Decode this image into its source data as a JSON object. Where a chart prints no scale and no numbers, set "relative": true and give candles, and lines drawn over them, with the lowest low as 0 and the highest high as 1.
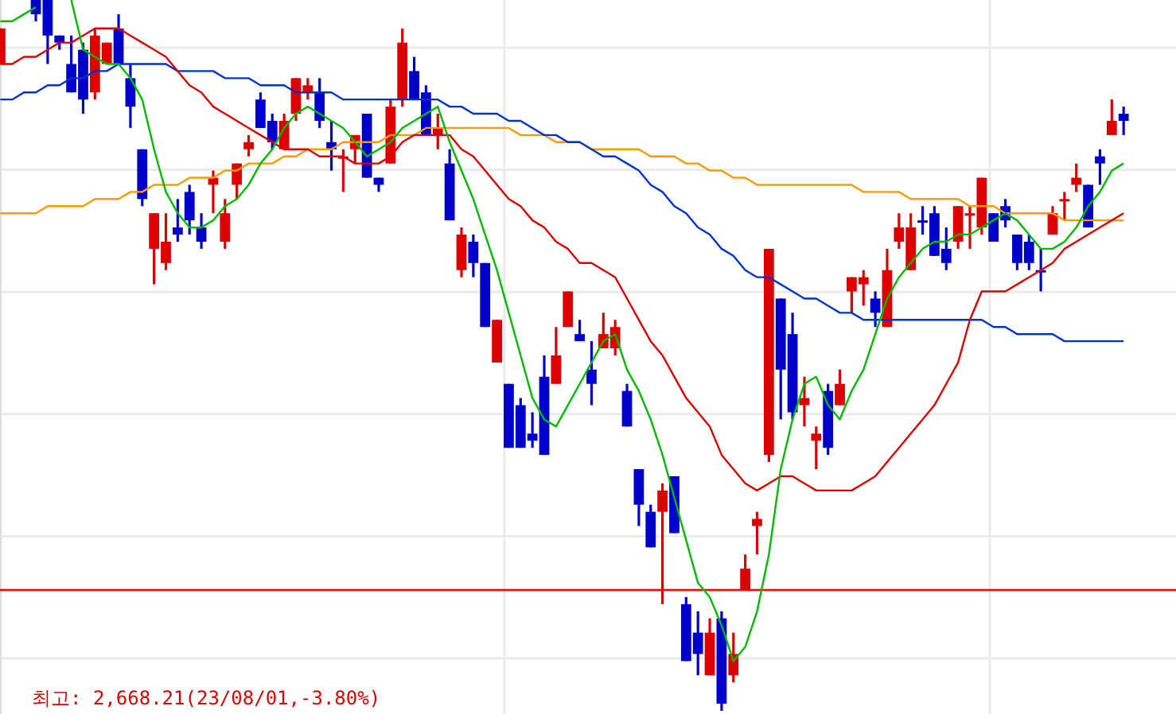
{
  "chart_data": {
    "type": "candlestick",
    "relative": true,
    "grid": true,
    "categories": [
      null,
      null,
      null,
      null,
      null,
      null,
      null,
      null,
      null,
      null,
      null,
      null,
      null,
      null,
      null,
      null,
      null,
      null,
      null,
      null,
      null,
      null,
      null,
      null,
      null,
      null,
      null,
      null,
      null,
      null,
      null,
      null,
      null,
      null,
      null,
      null,
      null,
      null,
      null,
      null,
      null,
      null,
      null,
      null,
      null,
      null,
      null,
      null,
      null,
      null,
      null,
      null,
      null,
      null,
      null,
      null,
      null,
      null,
      null,
      null,
      null,
      null,
      null,
      null,
      null,
      null,
      null,
      null,
      null,
      null,
      null,
      null,
      null,
      null,
      null,
      null,
      null,
      null,
      null,
      null,
      null,
      null,
      null,
      null,
      null,
      null,
      null,
      null,
      null,
      null,
      null,
      null,
      null,
      null,
      null,
      null
    ],
    "ohlc": [
      [
        0.91,
        0.96,
        0.91,
        0.96
      ],
      null,
      null,
      [
        1,
        1,
        0.97,
        0.98
      ],
      [
        1,
        1,
        0.91,
        0.95
      ],
      [
        0.95,
        0.95,
        0.93,
        0.94
      ],
      [
        0.91,
        0.95,
        0.87,
        0.87
      ],
      [
        0.93,
        0.94,
        0.84,
        0.86
      ],
      [
        0.87,
        0.96,
        0.86,
        0.95
      ],
      [
        0.91,
        0.94,
        0.91,
        0.94
      ],
      [
        0.96,
        0.98,
        0.91,
        0.91
      ],
      [
        0.89,
        0.91,
        0.82,
        0.85
      ],
      [
        0.79,
        0.79,
        0.71,
        0.72
      ],
      [
        0.65,
        0.7,
        0.6,
        0.7
      ],
      [
        0.63,
        0.7,
        0.62,
        0.66
      ],
      [
        0.68,
        0.72,
        0.66,
        0.67
      ],
      [
        0.73,
        0.74,
        0.67,
        0.69
      ],
      [
        0.68,
        0.7,
        0.65,
        0.66
      ],
      [
        0.74,
        0.76,
        0.7,
        0.75
      ],
      [
        0.66,
        0.72,
        0.65,
        0.7
      ],
      [
        0.74,
        0.77,
        0.72,
        0.77
      ],
      [
        0.79,
        0.81,
        0.78,
        0.8
      ],
      [
        0.86,
        0.87,
        0.82,
        0.82
      ],
      [
        0.83,
        0.84,
        0.79,
        0.8
      ],
      [
        0.79,
        0.84,
        0.79,
        0.83
      ],
      [
        0.84,
        0.89,
        0.83,
        0.89
      ],
      [
        0.87,
        0.89,
        0.86,
        0.88
      ],
      [
        0.87,
        0.89,
        0.82,
        0.83
      ],
      [
        0.8,
        0.83,
        0.76,
        0.79
      ],
      [
        0.78,
        0.79,
        0.73,
        0.78
      ],
      [
        0.79,
        0.81,
        0.77,
        0.81
      ],
      [
        0.84,
        0.84,
        0.75,
        0.75
      ],
      [
        0.75,
        0.75,
        0.73,
        0.74
      ],
      [
        0.77,
        0.86,
        0.77,
        0.85
      ],
      [
        0.86,
        0.96,
        0.85,
        0.94
      ],
      [
        0.9,
        0.92,
        0.86,
        0.86
      ],
      [
        0.87,
        0.88,
        0.81,
        0.81
      ],
      [
        0.81,
        0.84,
        0.79,
        0.82
      ],
      [
        0.77,
        0.79,
        0.69,
        0.69
      ],
      [
        0.62,
        0.68,
        0.61,
        0.67
      ],
      [
        0.66,
        0.67,
        0.61,
        0.63
      ],
      [
        0.63,
        0.63,
        0.54,
        0.54
      ],
      [
        0.49,
        0.55,
        0.49,
        0.55
      ],
      [
        0.46,
        0.46,
        0.37,
        0.37
      ],
      [
        0.43,
        0.44,
        0.37,
        0.37
      ],
      [
        0.39,
        0.42,
        0.37,
        0.38
      ],
      [
        0.47,
        0.5,
        0.36,
        0.36
      ],
      [
        0.46,
        0.54,
        0.46,
        0.5
      ],
      [
        0.54,
        0.59,
        0.54,
        0.59
      ],
      [
        0.53,
        0.55,
        0.52,
        0.52
      ],
      [
        0.48,
        0.52,
        0.43,
        0.46
      ],
      [
        0.51,
        0.56,
        0.51,
        0.53
      ],
      [
        0.51,
        0.55,
        0.5,
        0.54
      ],
      [
        0.45,
        0.46,
        0.4,
        0.4
      ],
      [
        0.34,
        0.34,
        0.26,
        0.29
      ],
      [
        0.28,
        0.29,
        0.23,
        0.23
      ],
      [
        0.28,
        0.32,
        0.15,
        0.31
      ],
      [
        0.33,
        0.33,
        0.25,
        0.25
      ],
      [
        0.15,
        0.16,
        0.07,
        0.07
      ],
      [
        0.11,
        0.14,
        0.05,
        0.08
      ],
      [
        0.05,
        0.13,
        0.05,
        0.11
      ],
      [
        0.13,
        0.14,
        0,
        0.01
      ],
      [
        0.05,
        0.11,
        0.04,
        0.08
      ],
      [
        0.17,
        0.22,
        0.17,
        0.2
      ],
      [
        0.26,
        0.28,
        0.22,
        0.27
      ],
      [
        0.36,
        0.65,
        0.35,
        0.65
      ],
      [
        0.58,
        0.58,
        0.41,
        0.48
      ],
      [
        0.53,
        0.56,
        0.41,
        0.42
      ],
      [
        0.43,
        0.47,
        0.4,
        0.44
      ],
      [
        0.38,
        0.4,
        0.34,
        0.39
      ],
      [
        0.45,
        0.46,
        0.36,
        0.37
      ],
      [
        0.43,
        0.48,
        0.43,
        0.46
      ],
      [
        0.59,
        0.61,
        0.56,
        0.61
      ],
      [
        0.6,
        0.62,
        0.57,
        0.61
      ],
      [
        0.58,
        0.59,
        0.54,
        0.56
      ],
      [
        0.54,
        0.65,
        0.54,
        0.62
      ],
      [
        0.66,
        0.7,
        0.65,
        0.68
      ],
      [
        0.62,
        0.7,
        0.62,
        0.68
      ],
      [
        0.69,
        0.71,
        0.67,
        0.69
      ],
      [
        0.7,
        0.71,
        0.64,
        0.64
      ],
      [
        0.65,
        0.68,
        0.62,
        0.63
      ],
      [
        0.66,
        0.71,
        0.65,
        0.71
      ],
      [
        0.7,
        0.71,
        0.65,
        0.7
      ],
      [
        0.68,
        0.75,
        0.67,
        0.75
      ],
      [
        0.7,
        0.7,
        0.66,
        0.66
      ],
      [
        0.71,
        0.72,
        0.68,
        0.69
      ],
      [
        0.67,
        0.67,
        0.62,
        0.63
      ],
      [
        0.66,
        0.67,
        0.62,
        0.63
      ],
      [
        0.62,
        0.65,
        0.59,
        0.62
      ],
      [
        0.67,
        0.71,
        0.67,
        0.7
      ],
      [
        0.72,
        0.73,
        0.69,
        0.72
      ],
      [
        0.74,
        0.77,
        0.73,
        0.75
      ],
      [
        0.74,
        0.74,
        0.68,
        0.68
      ],
      [
        0.78,
        0.79,
        0.74,
        0.77
      ],
      [
        0.81,
        0.86,
        0.81,
        0.83
      ],
      [
        0.84,
        0.85,
        0.81,
        0.83
      ]
    ],
    "colors": [
      "#dd0000",
      null,
      null,
      "#0000cc",
      "#0000cc",
      "#0000cc",
      "#0000cc",
      "#0000cc",
      "#dd0000",
      "#dd0000",
      "#0000cc",
      "#0000cc",
      "#0000cc",
      "#dd0000",
      "#dd0000",
      "#0000cc",
      "#0000cc",
      "#0000cc",
      "#dd0000",
      "#dd0000",
      "#dd0000",
      "#dd0000",
      "#0000cc",
      "#0000cc",
      "#dd0000",
      "#dd0000",
      "#dd0000",
      "#0000cc",
      "#0000cc",
      "#dd0000",
      "#dd0000",
      "#0000cc",
      "#0000cc",
      "#dd0000",
      "#dd0000",
      "#0000cc",
      "#0000cc",
      "#dd0000",
      "#0000cc",
      "#dd0000",
      "#0000cc",
      "#0000cc",
      "#dd0000",
      "#0000cc",
      "#0000cc",
      "#0000cc",
      "#0000cc",
      "#dd0000",
      "#dd0000",
      "#0000cc",
      "#0000cc",
      "#dd0000",
      "#dd0000",
      "#0000cc",
      "#0000cc",
      "#0000cc",
      "#dd0000",
      "#0000cc",
      "#0000cc",
      "#0000cc",
      "#dd0000",
      "#0000cc",
      "#dd0000",
      "#dd0000",
      "#dd0000",
      "#dd0000",
      "#0000cc",
      "#0000cc",
      "#dd0000",
      "#dd0000",
      "#0000cc",
      "#dd0000",
      "#dd0000",
      "#dd0000",
      "#0000cc",
      "#dd0000",
      "#dd0000",
      "#dd0000",
      "#0000cc",
      "#0000cc",
      "#0000cc",
      "#dd0000",
      "#dd0000",
      "#dd0000",
      "#0000cc",
      "#0000cc",
      "#0000cc",
      "#0000cc",
      "#0000cc",
      "#dd0000",
      "#dd0000",
      "#dd0000",
      "#0000cc",
      "#0000cc",
      "#dd0000",
      "#0000cc"
    ],
    "series": [
      {
        "type": "line",
        "color": "#ff9900",
        "values": [
          0.7,
          0.7,
          0.7,
          0.7,
          0.71,
          0.71,
          0.71,
          0.71,
          0.72,
          0.72,
          0.72,
          0.73,
          0.73,
          0.74,
          0.74,
          0.74,
          0.75,
          0.75,
          0.75,
          0.76,
          0.76,
          0.77,
          0.77,
          0.77,
          0.78,
          0.78,
          0.79,
          0.79,
          0.79,
          0.8,
          0.8,
          0.8,
          0.8,
          0.81,
          0.81,
          0.81,
          0.82,
          0.82,
          0.82,
          0.82,
          0.82,
          0.82,
          0.82,
          0.82,
          0.81,
          0.81,
          0.81,
          0.8,
          0.8,
          0.8,
          0.79,
          0.79,
          0.79,
          0.79,
          0.79,
          0.78,
          0.78,
          0.78,
          0.77,
          0.77,
          0.76,
          0.76,
          0.75,
          0.75,
          0.74,
          0.74,
          0.74,
          0.74,
          0.74,
          0.74,
          0.74,
          0.74,
          0.74,
          0.73,
          0.73,
          0.73,
          0.73,
          0.72,
          0.72,
          0.72,
          0.72,
          0.72,
          0.71,
          0.71,
          0.71,
          0.7,
          0.7,
          0.7,
          0.7,
          0.7,
          0.69,
          0.69,
          0.69,
          0.69,
          0.69,
          0.69
        ]
      },
      {
        "type": "line",
        "color": "#0033cc",
        "values": [
          0.86,
          0.86,
          0.87,
          0.87,
          0.88,
          0.88,
          0.89,
          0.89,
          0.9,
          0.9,
          0.91,
          0.91,
          0.91,
          0.91,
          0.91,
          0.9,
          0.9,
          0.9,
          0.9,
          0.89,
          0.89,
          0.89,
          0.88,
          0.88,
          0.88,
          0.87,
          0.87,
          0.87,
          0.87,
          0.86,
          0.86,
          0.86,
          0.86,
          0.86,
          0.86,
          0.86,
          0.86,
          0.86,
          0.85,
          0.85,
          0.84,
          0.84,
          0.84,
          0.83,
          0.83,
          0.82,
          0.81,
          0.81,
          0.8,
          0.8,
          0.79,
          0.78,
          0.78,
          0.77,
          0.76,
          0.74,
          0.73,
          0.71,
          0.7,
          0.68,
          0.67,
          0.65,
          0.64,
          0.62,
          0.61,
          0.61,
          0.6,
          0.59,
          0.58,
          0.58,
          0.57,
          0.56,
          0.56,
          0.55,
          0.55,
          0.55,
          0.55,
          0.55,
          0.55,
          0.55,
          0.55,
          0.55,
          0.55,
          0.55,
          0.54,
          0.54,
          0.53,
          0.53,
          0.53,
          0.53,
          0.52,
          0.52,
          0.52,
          0.52,
          0.52,
          0.52
        ]
      },
      {
        "type": "line",
        "color": "#dd0000",
        "values": [
          0.91,
          0.91,
          0.92,
          0.92,
          0.93,
          0.94,
          0.94,
          0.95,
          0.96,
          0.96,
          0.96,
          0.95,
          0.94,
          0.93,
          0.92,
          0.9,
          0.88,
          0.87,
          0.85,
          0.84,
          0.83,
          0.82,
          0.81,
          0.8,
          0.79,
          0.79,
          0.79,
          0.78,
          0.78,
          0.78,
          0.77,
          0.77,
          0.77,
          0.78,
          0.8,
          0.81,
          0.81,
          0.81,
          0.81,
          0.79,
          0.78,
          0.76,
          0.74,
          0.72,
          0.71,
          0.69,
          0.68,
          0.66,
          0.65,
          0.63,
          0.63,
          0.62,
          0.61,
          0.58,
          0.55,
          0.52,
          0.5,
          0.47,
          0.44,
          0.42,
          0.4,
          0.36,
          0.34,
          0.32,
          0.31,
          0.32,
          0.33,
          0.33,
          0.32,
          0.31,
          0.31,
          0.31,
          0.31,
          0.32,
          0.33,
          0.35,
          0.37,
          0.39,
          0.41,
          0.43,
          0.46,
          0.49,
          0.55,
          0.59,
          0.59,
          0.59,
          0.6,
          0.61,
          0.62,
          0.63,
          0.65,
          0.66,
          0.67,
          0.68,
          0.69,
          0.7
        ]
      },
      {
        "type": "line",
        "color": "#00bb00",
        "values": [
          0.97,
          0.97,
          0.98,
          0.99,
          null,
          null,
          1,
          0.93,
          0.92,
          0.91,
          0.91,
          0.89,
          0.86,
          0.79,
          0.73,
          0.7,
          0.68,
          0.68,
          0.69,
          0.71,
          0.72,
          0.74,
          0.77,
          0.79,
          0.82,
          0.84,
          0.85,
          0.84,
          0.83,
          0.82,
          0.8,
          0.78,
          0.79,
          0.8,
          0.82,
          0.83,
          0.84,
          0.85,
          0.8,
          0.76,
          0.72,
          0.67,
          0.62,
          0.56,
          0.5,
          0.44,
          0.41,
          0.4,
          0.43,
          0.46,
          0.49,
          0.52,
          0.53,
          0.48,
          0.45,
          0.41,
          0.36,
          0.3,
          0.24,
          0.18,
          0.16,
          0.12,
          0.07,
          0.09,
          0.14,
          0.22,
          0.34,
          0.41,
          0.46,
          0.47,
          0.43,
          0.41,
          0.45,
          0.48,
          0.53,
          0.58,
          0.61,
          0.63,
          0.65,
          0.66,
          0.66,
          0.67,
          0.67,
          0.68,
          0.69,
          0.7,
          0.69,
          0.67,
          0.65,
          0.65,
          0.66,
          0.68,
          0.71,
          0.73,
          0.76,
          0.77
        ]
      }
    ],
    "ref_lines": [
      {
        "axis": "y",
        "value": 0.17,
        "color": "#ff0000"
      }
    ],
    "annotations": [
      "최고: 2,668.21(23/08/01,-3.80%)"
    ]
  }
}
